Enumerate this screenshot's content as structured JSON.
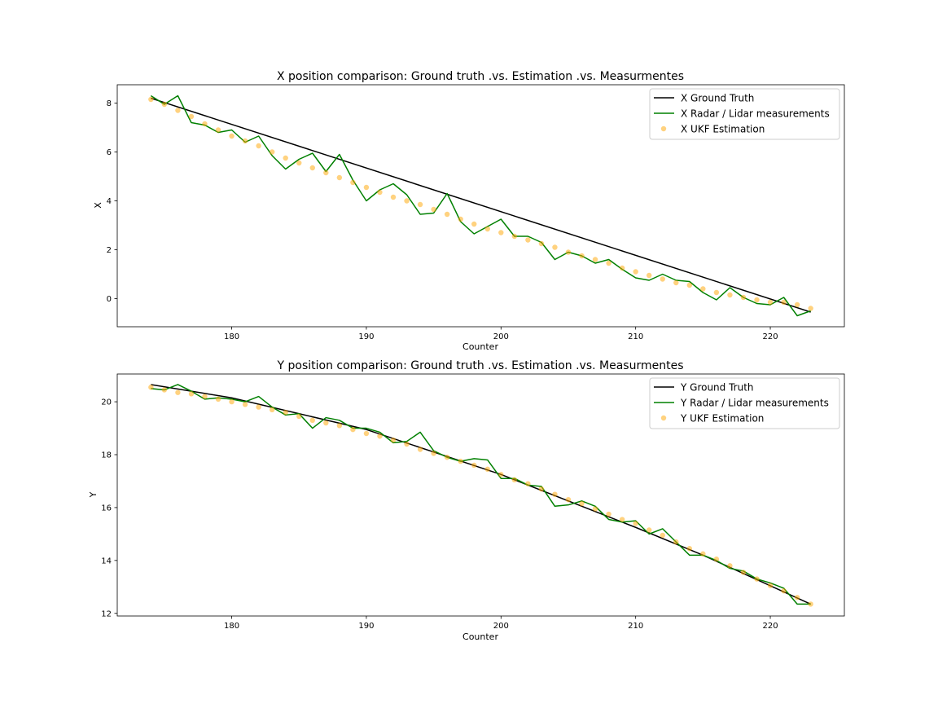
{
  "chart_data": [
    {
      "type": "line",
      "title": "X position comparison: Ground truth .vs. Estimation .vs. Measurmentes",
      "xlabel": "Counter",
      "ylabel": "X",
      "xlim": [
        171.5,
        225.5
      ],
      "ylim": [
        -1.15,
        8.75
      ],
      "xticks": [
        180,
        190,
        200,
        210,
        220
      ],
      "yticks": [
        0,
        2,
        4,
        6,
        8
      ],
      "grid": false,
      "legend_position": "top-right",
      "series": [
        {
          "name": "X Ground Truth",
          "kind": "line",
          "color": "#000000",
          "x": [
            174,
            223
          ],
          "y": [
            8.2,
            -0.55
          ]
        },
        {
          "name": "X Radar / Lidar measurements",
          "kind": "line",
          "color": "#008000",
          "x": [
            174,
            175,
            176,
            177,
            178,
            179,
            180,
            181,
            182,
            183,
            184,
            185,
            186,
            187,
            188,
            189,
            190,
            191,
            192,
            193,
            194,
            195,
            196,
            197,
            198,
            199,
            200,
            201,
            202,
            203,
            204,
            205,
            206,
            207,
            208,
            209,
            210,
            211,
            212,
            213,
            214,
            215,
            216,
            217,
            218,
            219,
            220,
            221,
            222,
            223
          ],
          "y": [
            8.3,
            7.95,
            8.3,
            7.2,
            7.1,
            6.8,
            6.9,
            6.4,
            6.65,
            5.85,
            5.3,
            5.7,
            5.95,
            5.2,
            5.9,
            4.85,
            4.0,
            4.45,
            4.7,
            4.25,
            3.45,
            3.5,
            4.3,
            3.15,
            2.65,
            2.95,
            3.25,
            2.55,
            2.55,
            2.3,
            1.6,
            1.9,
            1.75,
            1.45,
            1.6,
            1.2,
            0.85,
            0.75,
            1.0,
            0.75,
            0.7,
            0.25,
            -0.05,
            0.45,
            0.05,
            -0.2,
            -0.25,
            0.05,
            -0.7,
            -0.5
          ]
        },
        {
          "name": "X UKF Estimation",
          "kind": "scatter",
          "color": "#ffa500",
          "x": [
            174,
            175,
            176,
            177,
            178,
            179,
            180,
            181,
            182,
            183,
            184,
            185,
            186,
            187,
            188,
            189,
            190,
            191,
            192,
            193,
            194,
            195,
            196,
            197,
            198,
            199,
            200,
            201,
            202,
            203,
            204,
            205,
            206,
            207,
            208,
            209,
            210,
            211,
            212,
            213,
            214,
            215,
            216,
            217,
            218,
            219,
            220,
            221,
            222,
            223
          ],
          "y": [
            8.15,
            7.95,
            7.7,
            7.45,
            7.15,
            6.9,
            6.65,
            6.45,
            6.25,
            6.0,
            5.75,
            5.55,
            5.35,
            5.15,
            4.95,
            4.75,
            4.55,
            4.35,
            4.15,
            4.0,
            3.85,
            3.65,
            3.45,
            3.25,
            3.05,
            2.85,
            2.7,
            2.55,
            2.4,
            2.25,
            2.1,
            1.9,
            1.75,
            1.6,
            1.45,
            1.25,
            1.1,
            0.95,
            0.8,
            0.65,
            0.55,
            0.4,
            0.25,
            0.15,
            0.05,
            -0.05,
            -0.15,
            -0.15,
            -0.25,
            -0.4
          ]
        }
      ]
    },
    {
      "type": "line",
      "title": "Y position comparison: Ground truth .vs. Estimation .vs. Measurmentes",
      "xlabel": "Counter",
      "ylabel": "Y",
      "xlim": [
        171.5,
        225.5
      ],
      "ylim": [
        11.9,
        21.05
      ],
      "xticks": [
        180,
        190,
        200,
        210,
        220
      ],
      "yticks": [
        12,
        14,
        16,
        18,
        20
      ],
      "grid": false,
      "legend_position": "top-right",
      "series": [
        {
          "name": "Y Ground Truth",
          "kind": "line",
          "color": "#000000",
          "x": [
            174,
            180,
            190,
            200,
            210,
            215,
            223
          ],
          "y": [
            20.65,
            20.15,
            18.95,
            17.25,
            15.25,
            14.2,
            12.35
          ]
        },
        {
          "name": "Y Radar / Lidar measurements",
          "kind": "line",
          "color": "#008000",
          "x": [
            174,
            175,
            176,
            177,
            178,
            179,
            180,
            181,
            182,
            183,
            184,
            185,
            186,
            187,
            188,
            189,
            190,
            191,
            192,
            193,
            194,
            195,
            196,
            197,
            198,
            199,
            200,
            201,
            202,
            203,
            204,
            205,
            206,
            207,
            208,
            209,
            210,
            211,
            212,
            213,
            214,
            215,
            216,
            217,
            218,
            219,
            220,
            221,
            222,
            223
          ],
          "y": [
            20.5,
            20.45,
            20.65,
            20.4,
            20.1,
            20.15,
            20.1,
            20.0,
            20.2,
            19.8,
            19.5,
            19.55,
            19.0,
            19.4,
            19.3,
            19.0,
            19.0,
            18.85,
            18.45,
            18.5,
            18.85,
            18.15,
            17.9,
            17.75,
            17.85,
            17.8,
            17.1,
            17.1,
            16.85,
            16.8,
            16.05,
            16.1,
            16.25,
            16.05,
            15.55,
            15.45,
            15.5,
            15.0,
            15.2,
            14.7,
            14.2,
            14.2,
            14.0,
            13.7,
            13.6,
            13.3,
            13.15,
            12.95,
            12.35,
            12.35
          ]
        },
        {
          "name": "Y UKF Estimation",
          "kind": "scatter",
          "color": "#ffa500",
          "x": [
            174,
            175,
            176,
            177,
            178,
            179,
            180,
            181,
            182,
            183,
            184,
            185,
            186,
            187,
            188,
            189,
            190,
            191,
            192,
            193,
            194,
            195,
            196,
            197,
            198,
            199,
            200,
            201,
            202,
            203,
            204,
            205,
            206,
            207,
            208,
            209,
            210,
            211,
            212,
            213,
            214,
            215,
            216,
            217,
            218,
            219,
            220,
            221,
            222,
            223
          ],
          "y": [
            20.55,
            20.45,
            20.35,
            20.3,
            20.2,
            20.1,
            20.0,
            19.9,
            19.8,
            19.7,
            19.6,
            19.45,
            19.3,
            19.2,
            19.1,
            18.95,
            18.8,
            18.7,
            18.55,
            18.4,
            18.2,
            18.05,
            17.9,
            17.75,
            17.6,
            17.45,
            17.25,
            17.05,
            16.9,
            16.7,
            16.5,
            16.3,
            16.15,
            15.95,
            15.75,
            15.55,
            15.4,
            15.15,
            14.95,
            14.7,
            14.45,
            14.25,
            14.05,
            13.8,
            13.55,
            13.3,
            13.05,
            12.85,
            12.6,
            12.35
          ]
        }
      ]
    }
  ]
}
